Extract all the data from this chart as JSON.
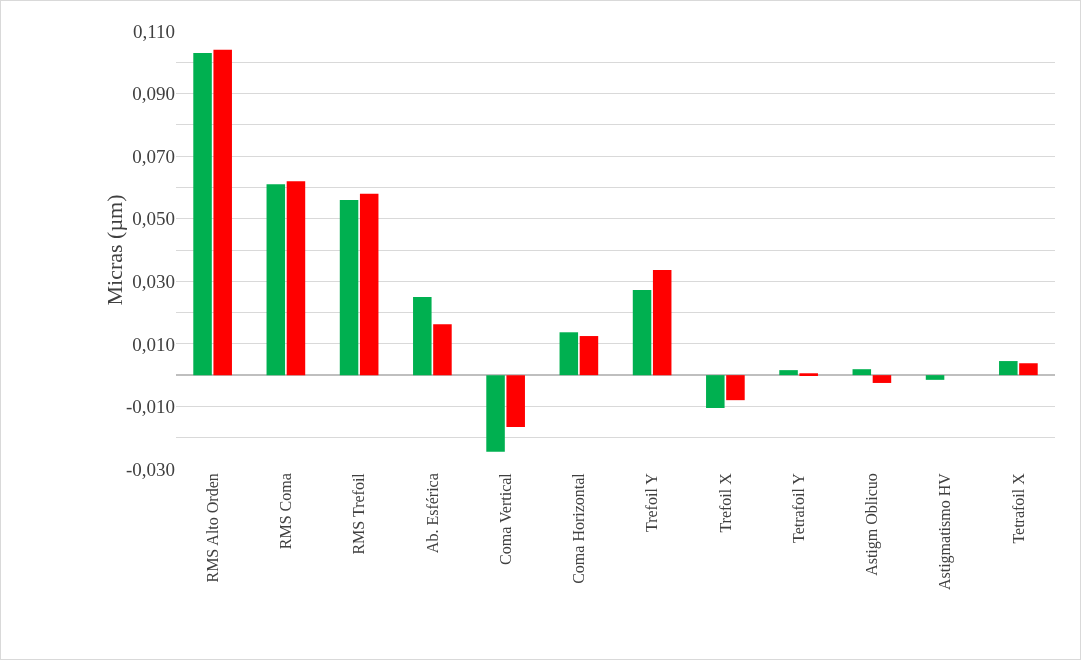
{
  "chart_data": {
    "type": "bar",
    "ylabel": "Micras (µm)",
    "categories": [
      "RMS Alto Orden",
      "RMS Coma",
      "RMS Trefoil",
      "Ab. Esférica",
      "Coma Vertical",
      "Coma Horizontal",
      "Trefoil Y",
      "Trefoil X",
      "Tetrafoil Y",
      "Astigm Oblicuo",
      "Astigmatismo HV",
      "Tetrafoil X"
    ],
    "series": [
      {
        "color": "#00b050",
        "values": [
          0.103,
          0.061,
          0.056,
          0.025,
          -0.0245,
          0.0137,
          0.0272,
          -0.0105,
          0.0016,
          0.0019,
          -0.0015,
          0.0045
        ]
      },
      {
        "color": "#ff0000",
        "values": [
          0.104,
          0.062,
          0.058,
          0.0163,
          -0.0166,
          0.0125,
          0.0336,
          -0.008,
          0.0006,
          -0.0025,
          0.0,
          0.0038
        ]
      }
    ],
    "ylim": [
      -0.03,
      0.11
    ],
    "yticks": [
      {
        "value": -0.03,
        "label": "-0,030"
      },
      {
        "value": -0.02,
        "label": null
      },
      {
        "value": -0.01,
        "label": "-0,010"
      },
      {
        "value": 0,
        "label": null
      },
      {
        "value": 0.01,
        "label": "0,010"
      },
      {
        "value": 0.02,
        "label": null
      },
      {
        "value": 0.03,
        "label": "0,030"
      },
      {
        "value": 0.04,
        "label": null
      },
      {
        "value": 0.05,
        "label": "0,050"
      },
      {
        "value": 0.06,
        "label": null
      },
      {
        "value": 0.07,
        "label": "0,070"
      },
      {
        "value": 0.08,
        "label": null
      },
      {
        "value": 0.09,
        "label": "0,090"
      },
      {
        "value": 0.1,
        "label": null
      },
      {
        "value": 0.11,
        "label": "0,110"
      }
    ],
    "grid": "y",
    "legend": false
  }
}
